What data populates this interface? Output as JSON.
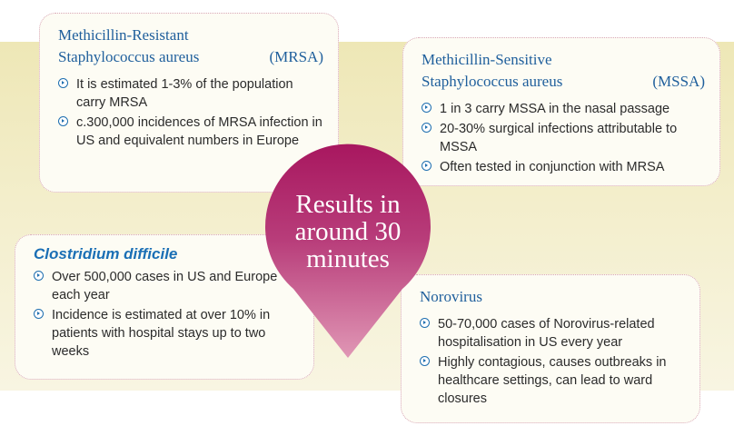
{
  "cards": {
    "mrsa": {
      "title_line1": "Methicillin-Resistant",
      "title_line2": "Staphylococcus aureus",
      "abbr": "(MRSA)",
      "bullets": [
        "It is estimated 1-3% of the population carry MRSA",
        "c.300,000 incidences of MRSA infection in US and equivalent numbers in Europe"
      ]
    },
    "mssa": {
      "title_line1": "Methicillin-Sensitive",
      "title_line2": "Staphylococcus aureus",
      "abbr": "(MSSA)",
      "bullets": [
        "1 in 3 carry MSSA in the nasal passage",
        "20-30% surgical infections attributable to MSSA",
        "Often tested in conjunction with MRSA"
      ]
    },
    "cdiff": {
      "title": "Clostridium difficile",
      "bullets": [
        "Over 500,000 cases in US and Europe each year",
        "Incidence is estimated at over 10% in patients with hospital stays up to two weeks"
      ]
    },
    "noro": {
      "title": "Norovirus",
      "bullets": [
        "50-70,000 cases of Norovirus-related hospitalisation in US every year",
        "Highly contagious, causes outbreaks in healthcare settings, can lead to ward closures"
      ]
    }
  },
  "center": {
    "line1": "Results in",
    "line2": "around 30",
    "line3": "minutes"
  },
  "colors": {
    "title_blue": "#1f5f9c",
    "pin_top": "#a8175f",
    "pin_bottom": "#dc8fae",
    "band": "#eee7b6"
  }
}
